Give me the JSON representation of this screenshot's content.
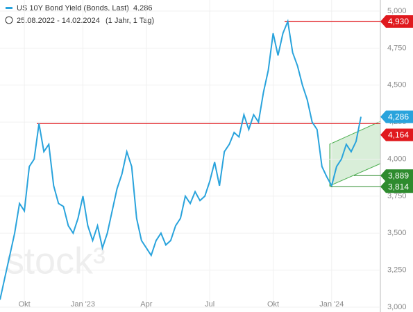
{
  "chart_data": {
    "type": "line",
    "title": "US 10Y Bond Yield (Bonds, Last)",
    "last_value": "4,286",
    "date_range": "25.08.2022 - 14.02.2024",
    "period": "(1 Jahr, 1 Tag)",
    "watermark": "stock³",
    "categories": [
      null,
      null,
      null,
      null,
      null,
      "Okt",
      null,
      null,
      null,
      null,
      null,
      null,
      null,
      null,
      null,
      null,
      null,
      "Jan '23",
      null,
      null,
      null,
      null,
      null,
      null,
      null,
      null,
      null,
      null,
      null,
      null,
      "Apr",
      null,
      null,
      null,
      null,
      null,
      null,
      null,
      null,
      null,
      null,
      null,
      null,
      "Jul",
      null,
      null,
      null,
      null,
      null,
      null,
      null,
      null,
      null,
      null,
      null,
      null,
      "Okt",
      null,
      null,
      null,
      null,
      null,
      null,
      null,
      null,
      null,
      null,
      null,
      "Jan '24",
      null,
      null,
      null,
      null,
      null,
      null
    ],
    "series": [
      {
        "name": "US 10Y Bond Yield (Bonds, Last)",
        "color": "#29a3dc",
        "values": [
          3.05,
          3.2,
          3.35,
          3.5,
          3.7,
          3.65,
          3.95,
          4.0,
          4.24,
          4.05,
          4.1,
          3.82,
          3.7,
          3.68,
          3.55,
          3.5,
          3.6,
          3.75,
          3.55,
          3.45,
          3.55,
          3.4,
          3.5,
          3.65,
          3.8,
          3.9,
          4.05,
          3.95,
          3.6,
          3.45,
          3.4,
          3.35,
          3.45,
          3.5,
          3.42,
          3.45,
          3.55,
          3.6,
          3.75,
          3.7,
          3.78,
          3.72,
          3.75,
          3.85,
          3.98,
          3.82,
          4.05,
          4.1,
          4.18,
          4.15,
          4.3,
          4.2,
          4.3,
          4.25,
          4.45,
          4.6,
          4.85,
          4.7,
          4.85,
          4.93,
          4.72,
          4.63,
          4.5,
          4.4,
          4.25,
          4.2,
          3.95,
          3.88,
          3.82,
          3.95,
          4.0,
          4.1,
          4.05,
          4.12,
          4.286
        ]
      }
    ],
    "ylim": [
      3.0,
      5.0
    ],
    "yticks": [
      {
        "value": 3.0,
        "label": "3,000"
      },
      {
        "value": 3.25,
        "label": "3,250"
      },
      {
        "value": 3.5,
        "label": "3,500"
      },
      {
        "value": 3.75,
        "label": "3,750"
      },
      {
        "value": 4.0,
        "label": "4,000"
      },
      {
        "value": 4.25,
        "label": "4,250"
      },
      {
        "value": 4.5,
        "label": "4,500"
      },
      {
        "value": 4.75,
        "label": "4,750"
      },
      {
        "value": 5.0,
        "label": "5,000"
      }
    ],
    "grid": true,
    "levels": [
      {
        "value": 4.24,
        "color": "#e0191e"
      },
      {
        "value": 4.93,
        "color": "#e0191e"
      }
    ],
    "price_tags": [
      {
        "value": 4.93,
        "label": "4,930",
        "color": "#e0191e"
      },
      {
        "value": 4.286,
        "label": "4,286",
        "color": "#29a3dc"
      },
      {
        "value": 4.164,
        "label": "4,164",
        "color": "#e0191e"
      },
      {
        "value": 3.889,
        "label": "3,889",
        "color": "#2e8b2e"
      },
      {
        "value": 3.814,
        "label": "3,814",
        "color": "#2e8b2e"
      }
    ]
  }
}
